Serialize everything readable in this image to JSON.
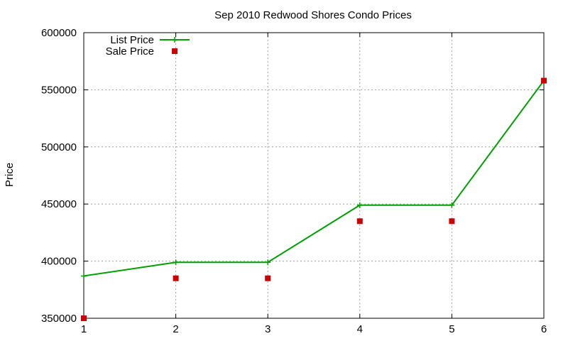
{
  "chart_data": {
    "type": "line",
    "title": "Sep 2010 Redwood Shores Condo Prices",
    "xlabel": "",
    "ylabel": "Price",
    "x": [
      1,
      2,
      3,
      4,
      5,
      6
    ],
    "xlim": [
      1,
      6
    ],
    "ylim": [
      350000,
      600000
    ],
    "xticks": [
      "1",
      "2",
      "3",
      "4",
      "5",
      "6"
    ],
    "yticks": [
      "350000",
      "400000",
      "450000",
      "500000",
      "550000",
      "600000"
    ],
    "grid": true,
    "legend_position": "top-left",
    "series": [
      {
        "name": "List Price",
        "style": "line-with-plus-markers",
        "color": "#00a000",
        "values": [
          387000,
          399000,
          399000,
          449000,
          449000,
          558000
        ]
      },
      {
        "name": "Sale Price",
        "style": "square-markers",
        "color": "#cc0000",
        "values": [
          350000,
          385000,
          385000,
          435000,
          435000,
          558000
        ]
      }
    ]
  }
}
